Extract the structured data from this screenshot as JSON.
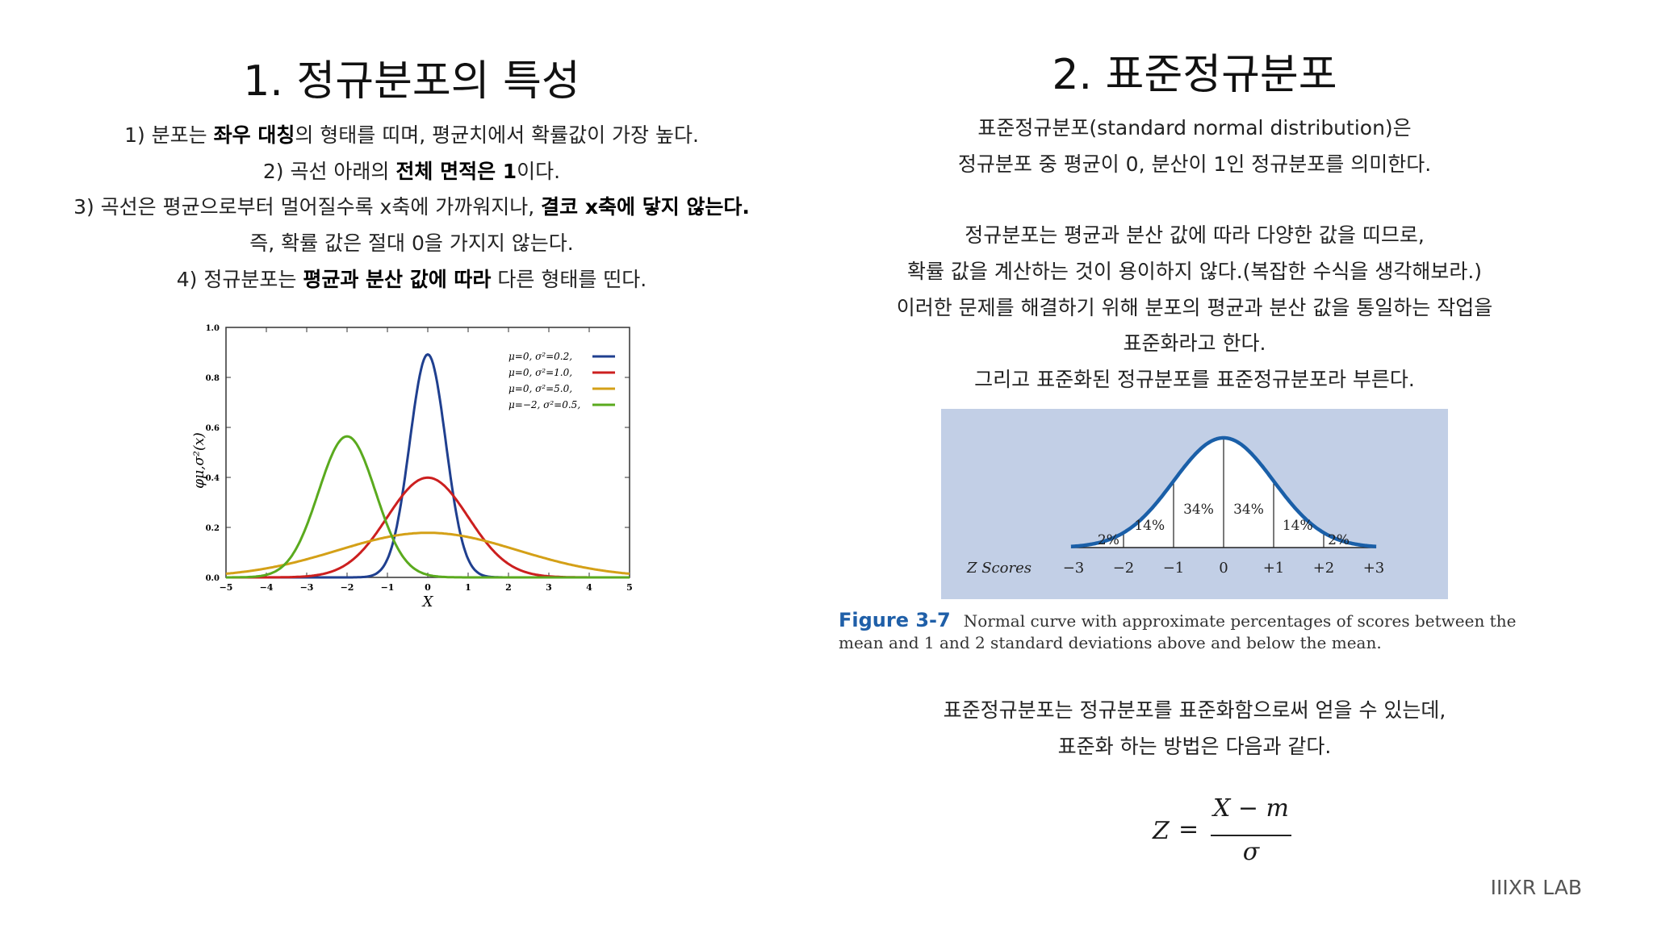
{
  "left": {
    "title": "1. 정규분포의 특성",
    "lines": [
      {
        "a": "1) 분포는 ",
        "b": "좌우 대칭",
        "c": "의 형태를 띠며, 평균치에서 확률값이 가장 높다."
      },
      {
        "a": "2) 곡선 아래의 ",
        "b": "전체 면적은 1",
        "c": "이다."
      },
      {
        "a": "3) 곡선은 평균으로부터 멀어질수록 x축에 가까워지나, ",
        "b": "결코 x축에 닿지 않는다.",
        "c": ""
      },
      {
        "a": "즉, 확률 값은 절대 0을 가지지 않는다.",
        "b": "",
        "c": ""
      },
      {
        "a": "4) 정규분포는 ",
        "b": "평균과 분산 값에 따라",
        "c": " 다른 형태를 띤다."
      }
    ]
  },
  "right": {
    "title": "2. 표준정규분포",
    "intro1": "표준정규분포(standard normal distribution)은",
    "intro2": "정규분포 중 평균이 0, 분산이 1인 정규분포를 의미한다.",
    "para": [
      "정규분포는 평균과 분산 값에 따라 다양한 값을 띠므로,",
      "확률 값을 계산하는 것이 용이하지 않다.(복잡한 수식을 생각해보라.)",
      "이러한 문제를 해결하기 위해 분포의 평균과 분산 값을 통일하는 작업을",
      "표준화라고 한다.",
      "그리고 표준화된 정규분포를 표준정규분포라 부른다."
    ],
    "outro1": "표준정규분포는 정규분포를 표준화함으로써 얻을 수 있는데,",
    "outro2": "표준화 하는 방법은 다음과 같다."
  },
  "figure": {
    "label": "Figure 3-7",
    "caption": "Normal curve with approximate percentages of scores between the mean and 1 and 2 standard deviations above and below the mean.",
    "z_label": "Z Scores",
    "z_ticks": [
      "−3",
      "−2",
      "−1",
      "0",
      "+1",
      "+2",
      "+3"
    ],
    "percents": [
      "2%",
      "14%",
      "34%",
      "34%",
      "14%",
      "2%"
    ],
    "curve_color": "#1a5fa8",
    "background": "#c2cfe6"
  },
  "formula": {
    "z": "Z",
    "eq": "=",
    "num": "X − m",
    "den": "σ"
  },
  "brand": "IIIXR LAB",
  "chart_data": {
    "type": "line",
    "xlabel": "X",
    "ylabel": "φμ,σ²(x)",
    "xlim": [
      -5,
      5
    ],
    "ylim": [
      0,
      1.0
    ],
    "x_ticks": [
      "−5",
      "−4",
      "−3",
      "−2",
      "−1",
      "0",
      "1",
      "2",
      "3",
      "4",
      "5"
    ],
    "y_ticks": [
      "0.0",
      "0.2",
      "0.4",
      "0.6",
      "0.8",
      "1.0"
    ],
    "legend_position": "top-right",
    "series": [
      {
        "name": "μ=0,  σ²=0.2,",
        "mu": 0,
        "var": 0.2,
        "color": "#1f3f8f"
      },
      {
        "name": "μ=0,  σ²=1.0,",
        "mu": 0,
        "var": 1.0,
        "color": "#cc1f1f"
      },
      {
        "name": "μ=0,  σ²=5.0,",
        "mu": 0,
        "var": 5.0,
        "color": "#d4a017"
      },
      {
        "name": "μ=−2, σ²=0.5,",
        "mu": -2,
        "var": 0.5,
        "color": "#5aaa1e"
      }
    ]
  }
}
